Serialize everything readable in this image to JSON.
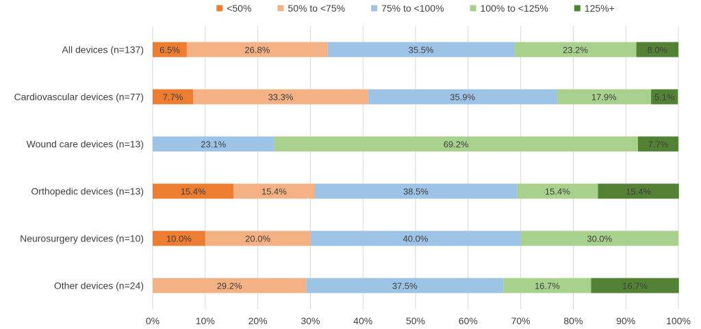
{
  "chart_data": {
    "type": "bar",
    "orientation": "horizontal",
    "stacked": "percent",
    "categories": [
      "All devices (n=137)",
      "Cardiovascular devices (n=77)",
      "Wound care devices (n=13)",
      "Orthopedic devices (n=13)",
      "Neurosurgery devices (n=10)",
      "Other devices (n=24)"
    ],
    "series": [
      {
        "name": "<50%",
        "color": "#ED7D31",
        "values": [
          6.5,
          7.7,
          0,
          15.4,
          10.0,
          0
        ]
      },
      {
        "name": "50% to <75%",
        "color": "#F4B183",
        "values": [
          26.8,
          33.3,
          0,
          15.4,
          20.0,
          29.2
        ]
      },
      {
        "name": "75% to <100%",
        "color": "#9DC3E6",
        "values": [
          35.5,
          35.9,
          23.1,
          38.5,
          40.0,
          37.5
        ]
      },
      {
        "name": "100% to <125%",
        "color": "#A9D18E",
        "values": [
          23.2,
          17.9,
          69.2,
          15.4,
          30.0,
          16.7
        ]
      },
      {
        "name": "125%+",
        "color": "#548235",
        "values": [
          8.0,
          5.1,
          7.7,
          15.4,
          0,
          16.7
        ]
      }
    ],
    "xlim": [
      0,
      100
    ],
    "x_ticks": [
      "0%",
      "10%",
      "20%",
      "30%",
      "40%",
      "50%",
      "60%",
      "70%",
      "80%",
      "90%",
      "100%"
    ],
    "grid": "vertical",
    "legend_position": "top",
    "label_format": "one-decimal-percent"
  }
}
